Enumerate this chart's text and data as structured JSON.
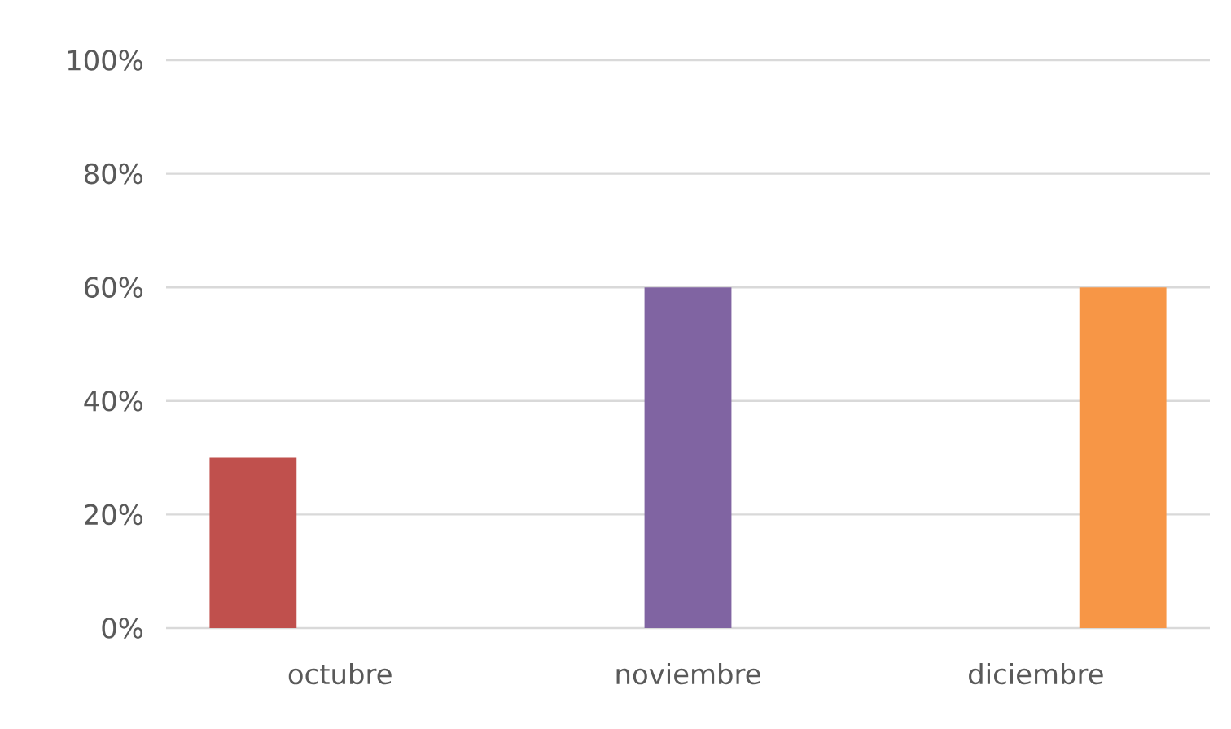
{
  "chart_data": {
    "type": "bar",
    "categories": [
      "octubre",
      "noviembre",
      "diciembre"
    ],
    "series": [
      {
        "color": "#c0504d",
        "values": [
          30,
          null,
          null
        ]
      },
      {
        "color": "#8064a2",
        "values": [
          null,
          60,
          null
        ]
      },
      {
        "color": "#f79646",
        "values": [
          null,
          null,
          60
        ]
      }
    ],
    "ylim": [
      0,
      100
    ],
    "yticks": [
      {
        "value": 0,
        "label": "0%"
      },
      {
        "value": 20,
        "label": "20%"
      },
      {
        "value": 40,
        "label": "40%"
      },
      {
        "value": 60,
        "label": "60%"
      },
      {
        "value": 80,
        "label": "80%"
      },
      {
        "value": 100,
        "label": "100%"
      }
    ],
    "grid": "y"
  }
}
